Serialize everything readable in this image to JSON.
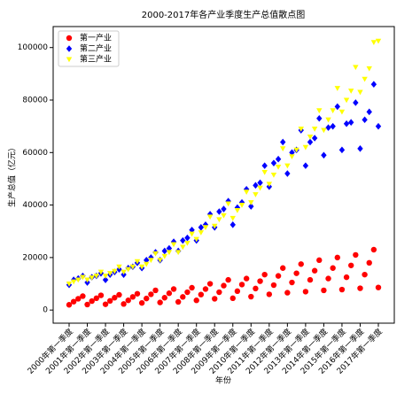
{
  "chart_data": {
    "type": "scatter",
    "title": "2000-2017年各产业季度生产总值散点图",
    "x_label": "年份",
    "y_label": "生产总值（亿元）",
    "categories": [
      "2000年第一季度",
      null,
      null,
      null,
      "2001年第一季度",
      null,
      null,
      null,
      "2002年第一季度",
      null,
      null,
      null,
      "2003年第一季度",
      null,
      null,
      null,
      "2004年第一季度",
      null,
      null,
      null,
      "2005年第一季度",
      null,
      null,
      null,
      "2006年第一季度",
      null,
      null,
      null,
      "2007年第一季度",
      null,
      null,
      null,
      "2008年第一季度",
      null,
      null,
      null,
      "2009年第一季度",
      null,
      null,
      null,
      "2010年第一季度",
      null,
      null,
      null,
      "2011年第一季度",
      null,
      null,
      null,
      "2012年第一季度",
      null,
      null,
      null,
      "2013年第一季度",
      null,
      null,
      null,
      "2014年第一季度",
      null,
      null,
      null,
      "2015年第一季度",
      null,
      null,
      null,
      "2016年第一季度",
      null,
      null,
      null,
      "2017年第一季度"
    ],
    "series": [
      {
        "name": "第一产业",
        "color": "#ff0000",
        "marker": "circle",
        "values": [
          2000,
          3200,
          4300,
          5300,
          2100,
          3400,
          4500,
          5600,
          2200,
          3500,
          4700,
          5800,
          2300,
          3700,
          5000,
          6200,
          2700,
          4400,
          6000,
          7500,
          2900,
          4700,
          6400,
          8000,
          3100,
          5000,
          6800,
          8500,
          3700,
          5900,
          8000,
          10000,
          4300,
          6800,
          9300,
          11500,
          4500,
          7200,
          9700,
          12000,
          5100,
          8200,
          11000,
          13500,
          6000,
          9500,
          13000,
          16000,
          6600,
          10500,
          14000,
          17500,
          7000,
          11500,
          15000,
          19000,
          7500,
          12000,
          16000,
          20000,
          7800,
          12500,
          17000,
          21000,
          8300,
          13500,
          18000,
          23000,
          8600
        ]
      },
      {
        "name": "第二产业",
        "color": "#0000ff",
        "marker": "diamond",
        "values": [
          9600,
          11500,
          12000,
          13000,
          10500,
          12500,
          13000,
          14000,
          11500,
          13500,
          14500,
          15500,
          13500,
          16000,
          16500,
          18000,
          16000,
          19000,
          20000,
          22000,
          19000,
          22500,
          23500,
          26000,
          22500,
          26500,
          27500,
          30500,
          26500,
          31500,
          32500,
          36500,
          31500,
          37500,
          38500,
          41500,
          32500,
          39000,
          41000,
          46000,
          39500,
          47500,
          48500,
          55000,
          47000,
          56000,
          57500,
          64000,
          52000,
          60000,
          61000,
          68500,
          55000,
          64000,
          65500,
          73000,
          59000,
          69500,
          70000,
          77500,
          61000,
          71000,
          71500,
          79000,
          61500,
          72500,
          75500,
          86000,
          70000
        ]
      },
      {
        "name": "第三产业",
        "color": "#ffff00",
        "marker": "triangle-down",
        "values": [
          10000,
          10800,
          11500,
          12500,
          11500,
          12300,
          13000,
          14500,
          13000,
          14000,
          14800,
          16500,
          14500,
          15500,
          16500,
          18500,
          16500,
          17500,
          19000,
          21500,
          19000,
          20500,
          22000,
          25000,
          22000,
          24000,
          25500,
          29000,
          27000,
          29500,
          31500,
          35500,
          32000,
          34500,
          36000,
          40500,
          35000,
          38000,
          40000,
          45000,
          41000,
          44000,
          46500,
          52500,
          48000,
          51500,
          54500,
          61500,
          55000,
          58500,
          61000,
          69000,
          62000,
          66000,
          69000,
          76000,
          68500,
          72500,
          76000,
          84500,
          75500,
          80000,
          83500,
          92500,
          83000,
          88000,
          92000,
          102000,
          102500
        ]
      }
    ],
    "ylim": [
      -5000,
      108000
    ],
    "yticks": [
      0,
      20000,
      40000,
      60000,
      80000,
      100000
    ],
    "legend": "upper left",
    "grid": false
  }
}
